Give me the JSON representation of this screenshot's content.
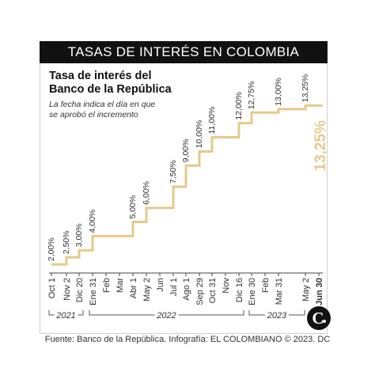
{
  "header": {
    "banner": "TASAS DE INTERÉS EN COLOMBIA"
  },
  "title_line1": "Tasa de interés del",
  "title_line2": "Banco de la República",
  "subtitle_line1": "La fecha indica el día en que",
  "subtitle_line2": "se aprobó el incremento",
  "source": "Fuente: Banco de la República. Infografía: EL COLOMBIANO © 2023. DC",
  "colors": {
    "line": "#e7c98c",
    "highlight": "#e7c98c",
    "banner": "#111111",
    "text": "#333333"
  },
  "logo_icon": "el-colombiano-logo-icon",
  "chart_data": {
    "type": "line",
    "step": true,
    "unit": "%",
    "ylim": [
      1.5,
      14
    ],
    "x": [
      "Oct 1",
      "Nov 2",
      "Dic 20",
      "Ene 31",
      "Feb",
      "Mar",
      "Abr 1",
      "May 2",
      "Jun",
      "Jul 1",
      "Ago 1",
      "Sep 29",
      "Oct 31",
      "Nov",
      "Dic 16",
      "Ene 30",
      "Feb",
      "Mar 31",
      "May 2",
      "Jun 30"
    ],
    "bold_x": [
      "Jun 30"
    ],
    "years": [
      "2021",
      "2022",
      "2023"
    ],
    "series": [
      {
        "values": [
          2.0,
          2.5,
          3.0,
          4.0,
          4.0,
          4.0,
          5.0,
          6.0,
          6.0,
          7.5,
          9.0,
          10.0,
          11.0,
          11.0,
          12.0,
          12.75,
          12.75,
          13.0,
          13.25,
          13.25
        ]
      }
    ],
    "labels": [
      {
        "index": 0,
        "text": "2,00%"
      },
      {
        "index": 1,
        "text": "2,50%"
      },
      {
        "index": 2,
        "text": "3,00%"
      },
      {
        "index": 3,
        "text": "4,00%"
      },
      {
        "index": 6,
        "text": "5,00%"
      },
      {
        "index": 7,
        "text": "6,00%"
      },
      {
        "index": 9,
        "text": "7,50%"
      },
      {
        "index": 10,
        "text": "9,00%"
      },
      {
        "index": 11,
        "text": "10,00%"
      },
      {
        "index": 12,
        "text": "11,00%"
      },
      {
        "index": 14,
        "text": "12,00%"
      },
      {
        "index": 15,
        "text": "12,75%"
      },
      {
        "index": 17,
        "text": "13,00%"
      },
      {
        "index": 18,
        "text": "13,25%"
      }
    ],
    "highlight": {
      "index": 19,
      "text": "13,25%"
    }
  }
}
